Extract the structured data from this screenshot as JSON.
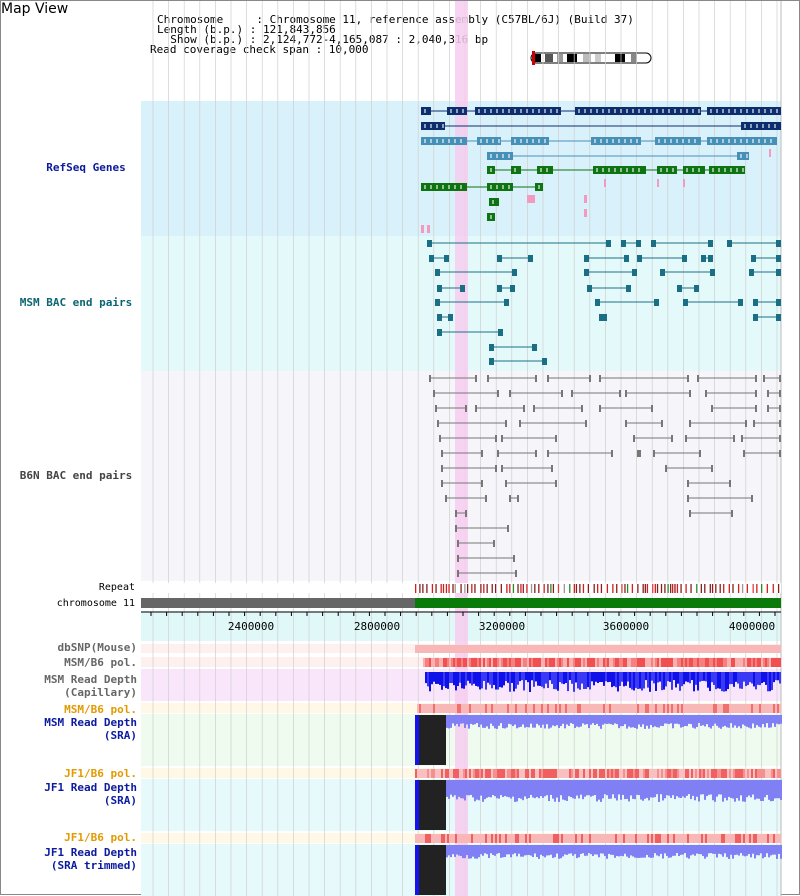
{
  "app": {
    "title": "Map View"
  },
  "header": {
    "chromosome_line": "Chromosome     : Chromosome 11, reference assembly (C57BL/6J) (Build 37)",
    "length_line": "Length (b.p.) : 121,843,856",
    "show_line": "  Show (b.p.) : 2,124,772-4,165,087 : 2,040,316 bp",
    "coverage_line": "Read coverage check span : 10,000"
  },
  "tracks": {
    "refseq": {
      "label": "RefSeq Genes",
      "color": "#0b1a9e"
    },
    "msm_bac": {
      "label": "MSM BAC end pairs",
      "color": "#0b6672"
    },
    "b6n_bac": {
      "label": "B6N BAC end pairs",
      "color": "#444444"
    },
    "repeat": {
      "label": "Repeat"
    },
    "chromosome": {
      "label": "chromosome 11"
    },
    "dbsnp": {
      "label": "dbSNP(Mouse)"
    },
    "msm_b6_pol_1": {
      "label": "MSM/B6 pol."
    },
    "msm_depth_cap": {
      "label": "MSM Read Depth\n(Capillary)"
    },
    "msm_b6_pol_2": {
      "label": "MSM/B6 pol.",
      "color": "#e39a00"
    },
    "msm_depth_sra": {
      "label": "MSM Read Depth\n(SRA)",
      "color": "#0b1a9e"
    },
    "jf1_b6_pol_1": {
      "label": "JF1/B6 pol.",
      "color": "#e39a00"
    },
    "jf1_depth_sra": {
      "label": "JF1 Read Depth\n(SRA)",
      "color": "#0b1a9e"
    },
    "jf1_b6_pol_2": {
      "label": "JF1/B6 pol.",
      "color": "#e39a00"
    },
    "jf1_depth_trim": {
      "label": "JF1 Read Depth\n(SRA trimmed)",
      "color": "#0b1a9e"
    }
  },
  "axis": {
    "ticks": [
      "2400000",
      "2800000",
      "3200000",
      "3600000",
      "4000000"
    ],
    "tick_values": [
      2400000,
      2800000,
      3200000,
      3600000,
      4000000
    ],
    "range": [
      2124772,
      4165087
    ]
  },
  "colors": {
    "refseq_bg": "#d9f1fb",
    "msm_bac_bg": "#e4fafa",
    "b6n_bac_bg": "#f5f5fa",
    "highlight": "#f6cdef",
    "gene_dark": "#0d2e6e",
    "gene_mid": "#4690b8",
    "gene_green": "#0e7412",
    "gene_pink": "#f49ac1",
    "msm_bac": "#1b6f85",
    "b6n_bac": "#666666",
    "chrom_grey": "#666666",
    "chrom_green": "#0a7a0a",
    "depth_blue": "#1414f0",
    "depth_light": "#8080f4",
    "pol_red": "#f07070"
  }
}
